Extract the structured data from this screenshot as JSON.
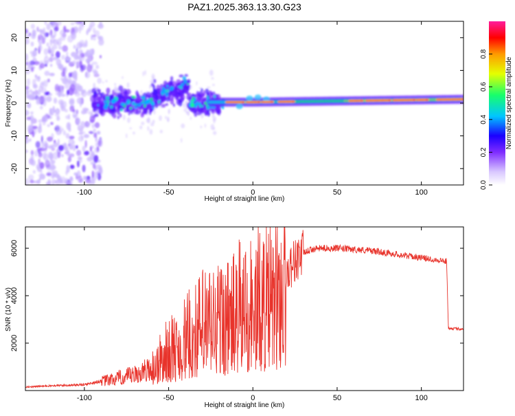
{
  "title": "PAZ1.2025.363.13.30.G23",
  "colors": {
    "line": "#e8332b",
    "colormap": [
      "#ffffff",
      "#d9c8ff",
      "#7f2cff",
      "#3a12ff",
      "#00c6ff",
      "#18ff6a",
      "#e5ff00",
      "#ff9a00",
      "#ff0000",
      "#ff1d9c"
    ]
  },
  "chart_data": [
    {
      "type": "heatmap",
      "title": "PAZ1.2025.363.13.30.G23",
      "xlabel": "Height of straight line (km)",
      "ylabel": "Frequency (Hz)",
      "xlim": [
        -135,
        125
      ],
      "ylim": [
        -25,
        25
      ],
      "xticks": [
        -100,
        -50,
        0,
        50,
        100
      ],
      "yticks": [
        -20,
        -10,
        0,
        10,
        20
      ],
      "colorbar": {
        "label": "Normalized spectral amplitude",
        "range": [
          0,
          1
        ],
        "ticks": [
          "0.0",
          "0.2",
          "0.4",
          "0.6",
          "0.8"
        ]
      },
      "description_points": [
        {
          "x": -130,
          "f": 0,
          "amp": 0.15
        },
        {
          "x": -90,
          "f": 0,
          "amp": 0.3
        },
        {
          "x": -45,
          "f": 5,
          "amp": 0.35
        },
        {
          "x": -20,
          "f": 0,
          "amp": 0.5
        },
        {
          "x": 0,
          "f": 0,
          "amp": 0.8
        },
        {
          "x": 50,
          "f": 0.5,
          "amp": 0.75
        },
        {
          "x": 100,
          "f": 1,
          "amp": 0.9
        }
      ]
    },
    {
      "type": "line",
      "xlabel": "Height of straight line (km)",
      "ylabel": "SNR (10 * v/v)",
      "xlim": [
        -135,
        125
      ],
      "ylim": [
        0,
        6900
      ],
      "xticks": [
        -100,
        -50,
        0,
        50,
        100
      ],
      "yticks": [
        2000,
        4000,
        6000
      ],
      "series": [
        {
          "name": "SNR",
          "x": [
            -135,
            -120,
            -100,
            -90,
            -80,
            -70,
            -60,
            -55,
            -50,
            -45,
            -40,
            -35,
            -30,
            -25,
            -20,
            -15,
            -10,
            -5,
            0,
            5,
            10,
            15,
            20,
            25,
            30,
            35,
            40,
            50,
            60,
            70,
            80,
            90,
            100,
            110,
            115,
            116,
            120,
            125
          ],
          "values": [
            150,
            200,
            250,
            400,
            550,
            700,
            1000,
            1400,
            1800,
            1900,
            2300,
            2600,
            3000,
            3100,
            3300,
            3200,
            3500,
            3900,
            3800,
            4100,
            4000,
            4500,
            5000,
            5500,
            5800,
            5950,
            6000,
            6000,
            5950,
            5900,
            5800,
            5700,
            5600,
            5500,
            5450,
            2650,
            2600,
            2600
          ]
        }
      ]
    }
  ]
}
